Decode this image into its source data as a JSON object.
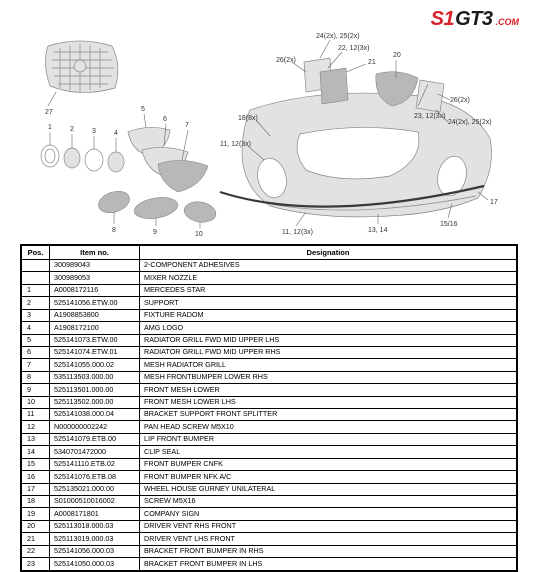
{
  "brand": {
    "p1": "S1",
    "p2": "GT3",
    "suffix": ".COM",
    "color_red": "#d8232a",
    "color_black": "#1a1a1a"
  },
  "callouts": {
    "c24_25_top": "24(2x), 25(2x)",
    "c22_12": "22, 12(3x)",
    "c26l": "26(2x)",
    "c21": "21",
    "c20": "20",
    "c23_12": "23, 12(3x)",
    "c26r": "26(2x)",
    "c24_25_r": "24(2x), 25(2x)",
    "c18": "18(8x)",
    "c11_12_top": "11, 12(3x)",
    "c11_12_bot": "11, 12(3x)",
    "c13_14": "13, 14",
    "c15_16": "15/16",
    "c17": "17",
    "c27": "27",
    "n1": "1",
    "n2": "2",
    "n3": "3",
    "n4": "4",
    "n5": "5",
    "n6": "6",
    "n7": "7",
    "n8": "8",
    "n9": "9",
    "n10": "10"
  },
  "table": {
    "headers": {
      "pos": "Pos.",
      "item": "Item no.",
      "desig": "Designation"
    },
    "rows": [
      {
        "pos": "",
        "item": "300989043",
        "desig": "2-COMPONENT ADHESIVES"
      },
      {
        "pos": "",
        "item": "300989053",
        "desig": "MIXER NOZZLE"
      },
      {
        "pos": "1",
        "item": "A0008172116",
        "desig": "MERCEDES STAR"
      },
      {
        "pos": "2",
        "item": "525141056.ETW.00",
        "desig": "SUPPORT"
      },
      {
        "pos": "3",
        "item": "A1908853800",
        "desig": "FIXTURE RADOM"
      },
      {
        "pos": "4",
        "item": "A1908172100",
        "desig": "AMG LOGO"
      },
      {
        "pos": "5",
        "item": "525141073.ETW.00",
        "desig": "RADIATOR GRILL FWD MID UPPER LHS"
      },
      {
        "pos": "6",
        "item": "525141074.ETW.01",
        "desig": "RADIATOR GRILL FWD MID UPPER RHS"
      },
      {
        "pos": "7",
        "item": "525141055.000.02",
        "desig": "MESH RADIATOR GRILL"
      },
      {
        "pos": "8",
        "item": "535113503.000.00",
        "desig": "MESH FRONTBUMPER LOWER RHS"
      },
      {
        "pos": "9",
        "item": "525113501.000.00",
        "desig": "FRONT MESH LOWER"
      },
      {
        "pos": "10",
        "item": "525113502.000.00",
        "desig": "FRONT MESH LOWER LHS"
      },
      {
        "pos": "11",
        "item": "525141038.000.04",
        "desig": "BRACKET SUPPORT FRONT SPLITTER"
      },
      {
        "pos": "12",
        "item": "N000000002242",
        "desig": "PAN HEAD SCREW M5X10"
      },
      {
        "pos": "13",
        "item": "525141079.ETB.00",
        "desig": "LIP FRONT BUMPER"
      },
      {
        "pos": "14",
        "item": "5340701472000",
        "desig": "CLIP SEAL"
      },
      {
        "pos": "15",
        "item": "525141110.ETB.02",
        "desig": "FRONT BUMPER CNFK"
      },
      {
        "pos": "16",
        "item": "525141076.ETB.08",
        "desig": "FRONT BUMPER NFK A/C"
      },
      {
        "pos": "17",
        "item": "525135021.000.00",
        "desig": "WHEEL HOUSE GURNEY UNILATERAL"
      },
      {
        "pos": "18",
        "item": "S01000510016002",
        "desig": "SCREW M5X16"
      },
      {
        "pos": "19",
        "item": "A0008171801",
        "desig": "COMPANY SIGN"
      },
      {
        "pos": "20",
        "item": "525113018.000.03",
        "desig": "DRIVER VENT RHS FRONT"
      },
      {
        "pos": "21",
        "item": "525113019.000.03",
        "desig": "DRIVER VENT LHS FRONT"
      },
      {
        "pos": "22",
        "item": "525141056.000.03",
        "desig": "BRACKET FRONT BUMPER IN RHS"
      },
      {
        "pos": "23",
        "item": "525141050.000.03",
        "desig": "BRACKET FRONT BUMPER IN LHS"
      }
    ]
  }
}
